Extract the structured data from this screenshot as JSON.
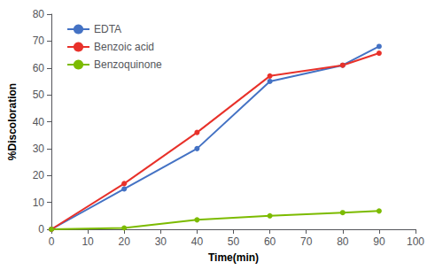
{
  "chart_data": {
    "type": "line",
    "x": [
      0,
      20,
      40,
      60,
      80,
      90
    ],
    "series": [
      {
        "name": "EDTA",
        "color": "#4472C4",
        "values": [
          0,
          15,
          30,
          55,
          61,
          68
        ]
      },
      {
        "name": "Benzoic acid",
        "color": "#E8312A",
        "values": [
          0,
          17,
          36,
          57,
          61,
          65.5
        ]
      },
      {
        "name": "Benzoquinone",
        "color": "#7CBB00",
        "values": [
          0,
          0.5,
          3.5,
          5,
          6.2,
          6.8
        ]
      }
    ],
    "xlabel": "Time(min)",
    "ylabel": "%Discoloration",
    "xlim": [
      0,
      100
    ],
    "ylim": [
      0,
      80
    ],
    "xticks": [
      0,
      10,
      20,
      30,
      40,
      50,
      60,
      70,
      80,
      90,
      100
    ],
    "yticks": [
      0,
      10,
      20,
      30,
      40,
      50,
      60,
      70,
      80
    ],
    "marker": "circle",
    "legend": "upper left",
    "grid": false
  }
}
